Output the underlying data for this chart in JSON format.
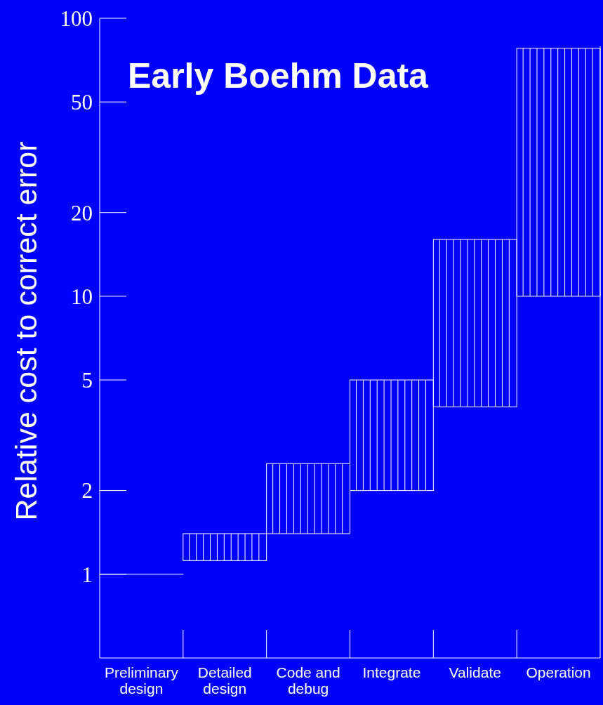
{
  "chart_data": {
    "type": "bar",
    "title": "Early Boehm Data",
    "ylabel": "Relative cost to correct error",
    "categories": [
      "Preliminary design",
      "Detailed design",
      "Code and debug",
      "Integrate",
      "Validate",
      "Operation"
    ],
    "base": [
      1,
      1.12,
      1.4,
      2,
      4,
      10
    ],
    "values": [
      0,
      0.28,
      1.1,
      3,
      12,
      68
    ],
    "color": "#ffffff",
    "log": true,
    "ylim": [
      0.5,
      100
    ],
    "yticks": [
      1,
      2,
      5,
      10,
      20,
      50,
      100
    ],
    "grid": false
  }
}
